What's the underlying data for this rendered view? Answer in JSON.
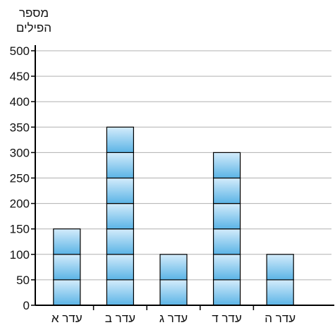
{
  "chart_data": {
    "type": "bar",
    "ylabel_lines": [
      "מספר",
      "הפילים"
    ],
    "categories": [
      "עדר א",
      "עדר ב",
      "עדר ג",
      "עדר ד",
      "עדר ה"
    ],
    "values": [
      150,
      350,
      100,
      300,
      100
    ],
    "unit_block": 50,
    "ylim": [
      0,
      500
    ],
    "yticks": [
      0,
      50,
      100,
      150,
      200,
      250,
      300,
      350,
      400,
      450,
      500
    ],
    "grid": true,
    "colors": {
      "bar_top": "#d4ecfb",
      "bar_bottom": "#5bb4e6",
      "grid": "#b0b0b0",
      "axis": "#000000"
    }
  }
}
